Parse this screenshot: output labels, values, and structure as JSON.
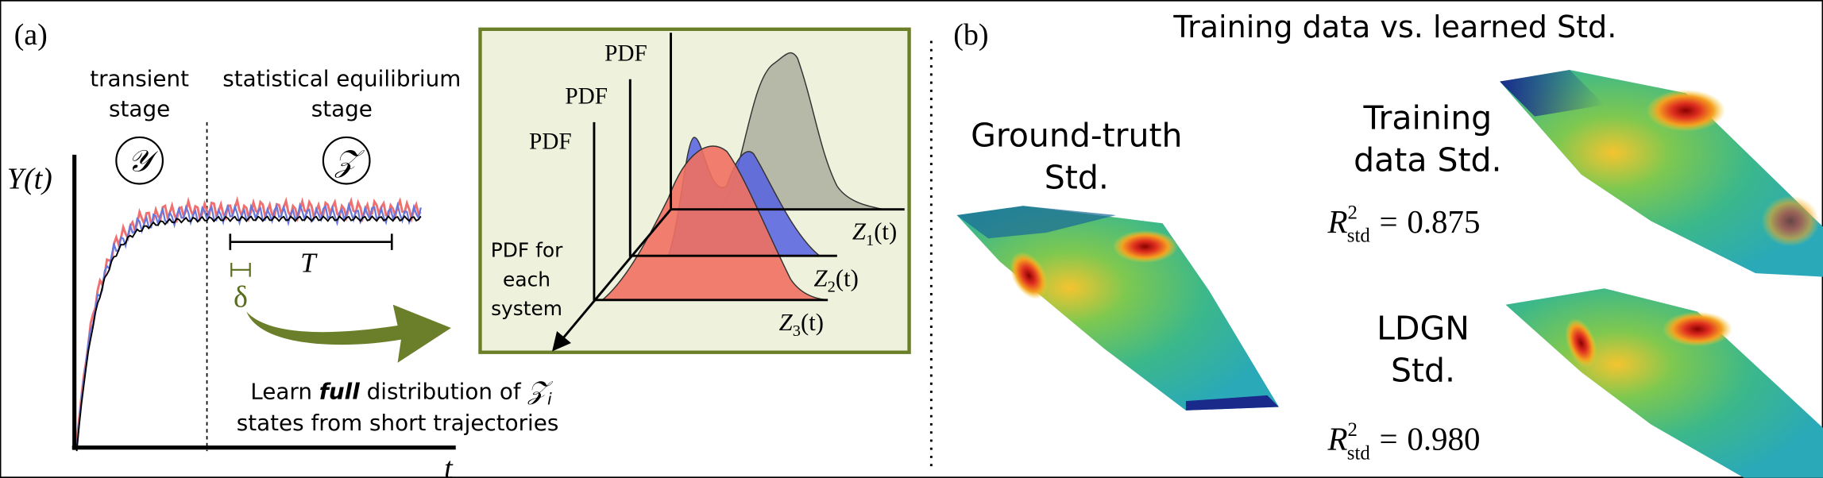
{
  "panel_a": {
    "label": "(a)",
    "transient_stage": [
      "transient",
      "stage"
    ],
    "equilibrium_stage": [
      "statistical equilibrium",
      "stage"
    ],
    "transient_symbol": "𝒴",
    "equilibrium_symbol": "𝒵",
    "y_axis_label": "Y(t)",
    "x_axis_label": "t",
    "window_label": "T",
    "step_label": "δ",
    "caption": {
      "line1": [
        "Learn ",
        "full",
        " distribution of ",
        "𝒵",
        "i"
      ],
      "line2": "states from short trajectories"
    },
    "inset": {
      "pdf_labels": [
        "PDF",
        "PDF",
        "PDF"
      ],
      "axis_labels": [
        {
          "name": "Z",
          "index": "1",
          "arg": "(t)"
        },
        {
          "name": "Z",
          "index": "2",
          "arg": "(t)"
        },
        {
          "name": "Z",
          "index": "3",
          "arg": "(t)"
        }
      ],
      "side_label": [
        "PDF for",
        "each",
        "system"
      ]
    }
  },
  "panel_b": {
    "label": "(b)",
    "title": "Training data vs. learned Std.",
    "ground_truth": [
      "Ground-truth",
      "Std."
    ],
    "training": {
      "title": [
        "Training",
        "data Std."
      ],
      "metric": {
        "symbol": "R",
        "superscript": "2",
        "subscript": "std",
        "equals": "=",
        "value": "0.875"
      }
    },
    "ldgn": {
      "title": [
        "LDGN",
        "Std."
      ],
      "metric": {
        "symbol": "R",
        "superscript": "2",
        "subscript": "std",
        "equals": "=",
        "value": "0.980"
      }
    }
  }
}
